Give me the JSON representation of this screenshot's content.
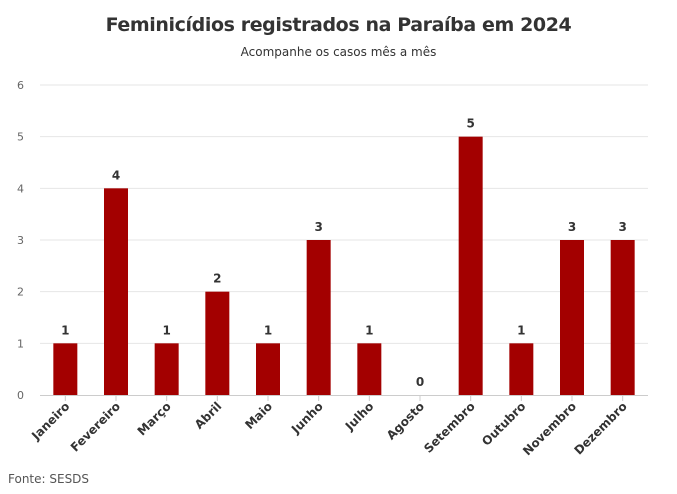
{
  "header": {
    "title": "Feminicídios registrados na Paraíba em 2024",
    "subtitle": "Acompanhe os casos mês a mês"
  },
  "footer": {
    "source": "Fonte: SESDS"
  },
  "colors": {
    "bar": "#a30000",
    "grid": "#e6e6e6",
    "axis": "#cccccc",
    "text": "#333333"
  },
  "chart_data": {
    "type": "bar",
    "title": "Feminicídios registrados na Paraíba em 2024",
    "subtitle": "Acompanhe os casos mês a mês",
    "categories": [
      "Janeiro",
      "Fevereiro",
      "Março",
      "Abril",
      "Maio",
      "Junho",
      "Julho",
      "Agosto",
      "Setembro",
      "Outubro",
      "Novembro",
      "Dezembro"
    ],
    "values": [
      1,
      4,
      1,
      2,
      1,
      3,
      1,
      0,
      5,
      1,
      3,
      3
    ],
    "ylim": [
      0,
      6
    ],
    "yticks": [
      0,
      1,
      2,
      3,
      4,
      5,
      6
    ],
    "grid": true,
    "data_labels": true,
    "xlabel": "",
    "ylabel": ""
  }
}
